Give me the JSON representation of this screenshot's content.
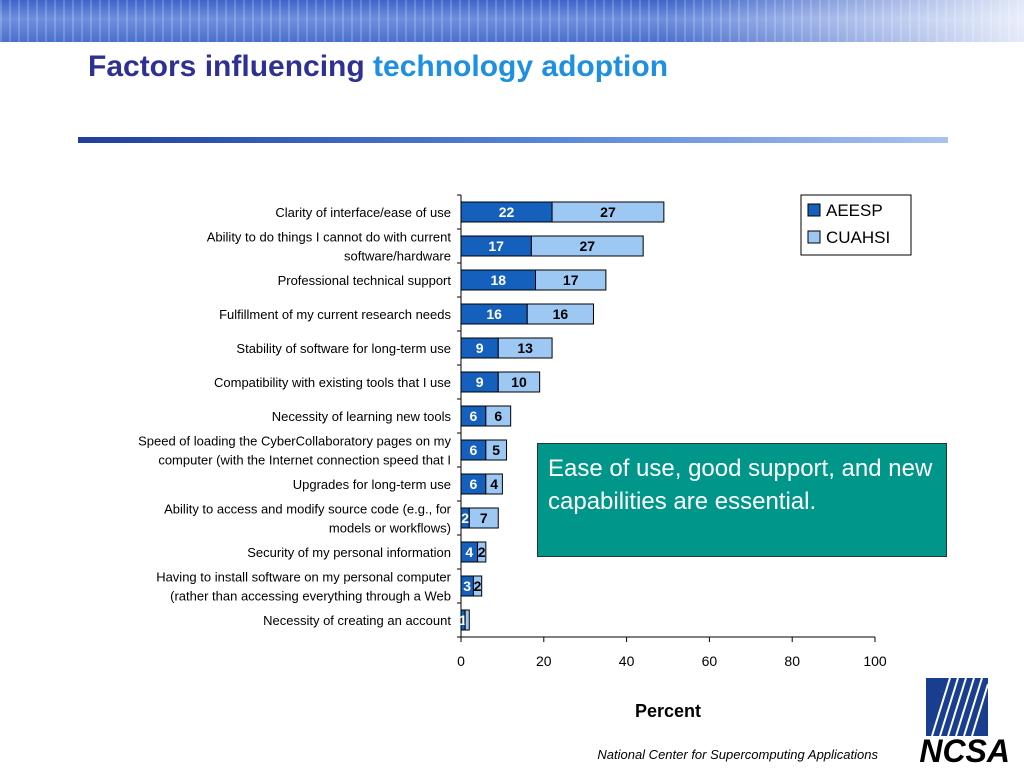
{
  "title": {
    "part1": "Factors influencing",
    "part2": "technology adoption"
  },
  "callout": {
    "text": "Ease of use, good support, and new capabilities are essential."
  },
  "footer": {
    "org": "National Center for Supercomputing Applications",
    "logo_text": "NCSA"
  },
  "colors": {
    "AEESP": "#1560bd",
    "CUAHSI": "#9ec8f4",
    "callout_bg": "#00968a",
    "title_dark": "#2e3192",
    "title_light": "#1f8fe0"
  },
  "chart_data": {
    "type": "bar",
    "orientation": "horizontal",
    "stacked": true,
    "categories": [
      [
        "Clarity of interface/ease of use"
      ],
      [
        "Ability to do things I cannot do with current",
        "software/hardware"
      ],
      [
        "Professional technical support"
      ],
      [
        "Fulfillment of my current research needs"
      ],
      [
        "Stability of software for long-term use"
      ],
      [
        "Compatibility with existing tools that I use"
      ],
      [
        "Necessity of learning new tools"
      ],
      [
        "Speed of loading the CyberCollaboratory pages on my",
        "computer (with the Internet connection speed that I"
      ],
      [
        "Upgrades for long-term use"
      ],
      [
        "Ability to access and modify source code (e.g., for",
        "models or workflows)"
      ],
      [
        "Security of my personal information"
      ],
      [
        "Having to install software on my personal computer",
        "(rather than accessing everything through a Web"
      ],
      [
        "Necessity of creating an account"
      ]
    ],
    "series": [
      {
        "name": "AEESP",
        "values": [
          22,
          17,
          18,
          16,
          9,
          9,
          6,
          6,
          6,
          2,
          4,
          3,
          1
        ]
      },
      {
        "name": "CUAHSI",
        "values": [
          27,
          27,
          17,
          16,
          13,
          10,
          6,
          5,
          4,
          7,
          2,
          2,
          1
        ]
      }
    ],
    "data_labels": [
      [
        "22",
        "27"
      ],
      [
        "17",
        "27"
      ],
      [
        "18",
        "17"
      ],
      [
        "16",
        "16"
      ],
      [
        "9",
        "13"
      ],
      [
        "9",
        "10"
      ],
      [
        "6",
        "6"
      ],
      [
        "6",
        "5"
      ],
      [
        "6",
        "4"
      ],
      [
        "2",
        "7"
      ],
      [
        "4",
        "2"
      ],
      [
        "3",
        "2"
      ],
      [
        "1",
        ""
      ]
    ],
    "xlim": [
      0,
      100
    ],
    "xticks": [
      0,
      20,
      40,
      60,
      80,
      100
    ],
    "xlabel": "Percent",
    "ylabel": "",
    "legend": {
      "position": "top-right",
      "entries": [
        "AEESP",
        "CUAHSI"
      ]
    },
    "grid": false
  }
}
